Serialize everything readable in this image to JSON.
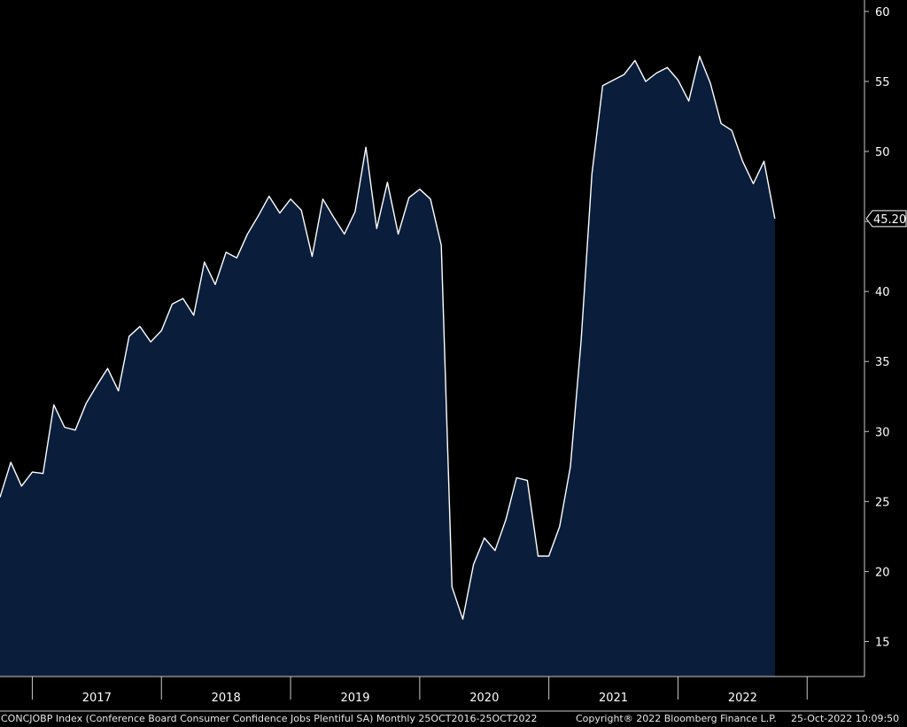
{
  "chart_data": {
    "type": "area",
    "series": [
      {
        "values": [
          25.3,
          27.8,
          26.1,
          27.1,
          27.0,
          31.9,
          30.3,
          30.1,
          32.0,
          33.3,
          34.5,
          32.9,
          36.8,
          37.5,
          36.4,
          37.2,
          39.1,
          39.5,
          38.3,
          42.1,
          40.5,
          42.8,
          42.4,
          44.1,
          45.4,
          46.8,
          45.6,
          46.6,
          45.8,
          42.5,
          46.6,
          45.3,
          44.1,
          45.7,
          50.3,
          44.5,
          47.8,
          44.1,
          46.7,
          47.3,
          46.6,
          43.3,
          18.9,
          16.6,
          20.5,
          22.4,
          21.5,
          23.7,
          26.7,
          26.5,
          21.1,
          21.1,
          23.2,
          27.5,
          36.5,
          48.4,
          54.7,
          55.1,
          55.5,
          56.5,
          55.0,
          55.6,
          56.0,
          55.1,
          53.6,
          56.8,
          54.9,
          52.0,
          51.5,
          49.3,
          47.7,
          49.3,
          45.2
        ]
      }
    ],
    "x_start": "2016-10",
    "frequency": "monthly",
    "x_tick_labels": [
      "2017",
      "2018",
      "2019",
      "2020",
      "2021",
      "2022"
    ],
    "y_ticks": [
      15,
      20,
      25,
      30,
      35,
      40,
      45,
      50,
      55,
      60
    ],
    "ylim": [
      12.5,
      60.5
    ],
    "last_value_label": "45.20",
    "grid": false,
    "colors": {
      "background": "#000000",
      "fill": "#0a1e3c",
      "line": "#ffffff",
      "axis": "#c8c8c8",
      "text": "#ffffff"
    }
  },
  "footer": {
    "description": "CONCJOBP Index (Conference Board Consumer Confidence Jobs Plentiful SA)  Monthly 25OCT2016-25OCT2022",
    "copyright": "Copyright® 2022 Bloomberg Finance L.P.",
    "timestamp": "25-Oct-2022 10:09:50"
  }
}
